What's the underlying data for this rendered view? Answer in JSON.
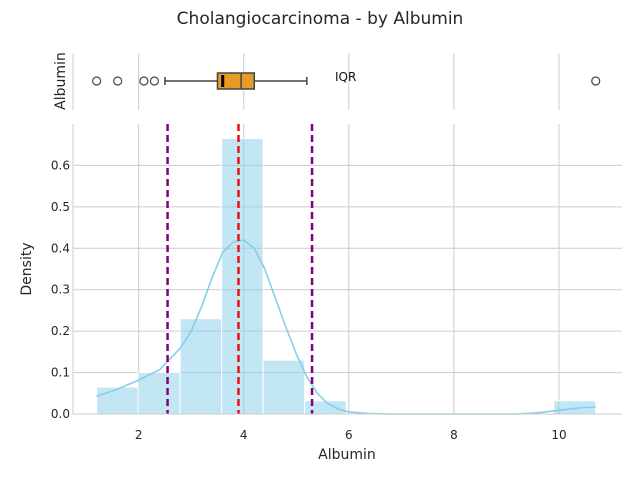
{
  "chart_data": {
    "type": "bar",
    "title": "Cholangiocarcinoma - by Albumin",
    "boxplot": {
      "ylabel": "Albumin",
      "q1": 3.5,
      "median": 3.95,
      "q3": 4.2,
      "whisker_low": 2.5,
      "whisker_high": 5.2,
      "mean": 3.6,
      "outliers": [
        1.2,
        1.6,
        2.1,
        2.3,
        10.7
      ],
      "annotation": "IQR",
      "box_color": "#e69c24"
    },
    "histogram": {
      "xlabel": "Albumin",
      "ylabel": "Density",
      "xlim": [
        0.75,
        11.2
      ],
      "ylim": [
        0,
        0.7
      ],
      "xticks": [
        2,
        4,
        6,
        8,
        10
      ],
      "yticks": [
        0.0,
        0.1,
        0.2,
        0.3,
        0.4,
        0.5,
        0.6
      ],
      "bins": [
        {
          "x0": 1.2,
          "x1": 1.99,
          "density": 0.065
        },
        {
          "x0": 1.99,
          "x1": 2.79,
          "density": 0.1
        },
        {
          "x0": 2.79,
          "x1": 3.58,
          "density": 0.23
        },
        {
          "x0": 3.58,
          "x1": 4.37,
          "density": 0.665
        },
        {
          "x0": 4.37,
          "x1": 5.16,
          "density": 0.13
        },
        {
          "x0": 5.16,
          "x1": 5.95,
          "density": 0.032
        },
        {
          "x0": 5.95,
          "x1": 6.74,
          "density": 0
        },
        {
          "x0": 6.74,
          "x1": 7.53,
          "density": 0
        },
        {
          "x0": 7.53,
          "x1": 8.32,
          "density": 0
        },
        {
          "x0": 8.32,
          "x1": 9.11,
          "density": 0
        },
        {
          "x0": 9.11,
          "x1": 9.9,
          "density": 0
        },
        {
          "x0": 9.9,
          "x1": 10.7,
          "density": 0.032
        }
      ],
      "kde": {
        "x": [
          1.2,
          1.6,
          2.0,
          2.4,
          2.8,
          3.0,
          3.2,
          3.4,
          3.6,
          3.8,
          4.0,
          4.2,
          4.4,
          4.6,
          4.8,
          5.0,
          5.2,
          5.4,
          5.6,
          5.8,
          6.0,
          6.4,
          6.8,
          7.2,
          7.6,
          8.0,
          8.4,
          8.8,
          9.2,
          9.6,
          10.0,
          10.4,
          10.7
        ],
        "y": [
          0.043,
          0.06,
          0.082,
          0.107,
          0.16,
          0.2,
          0.26,
          0.33,
          0.39,
          0.415,
          0.42,
          0.4,
          0.35,
          0.28,
          0.21,
          0.145,
          0.09,
          0.05,
          0.025,
          0.012,
          0.005,
          0.001,
          0.0,
          0.0,
          0.0,
          0.0,
          0.0,
          0.0,
          0.0,
          0.003,
          0.009,
          0.015,
          0.017
        ]
      },
      "lines": [
        {
          "x": 2.55,
          "color": "#800080"
        },
        {
          "x": 3.9,
          "color": "#ee1111"
        },
        {
          "x": 5.3,
          "color": "#800080"
        }
      ],
      "bar_color": "#87ceeb",
      "kde_color": "#87ceeb",
      "grid": true
    }
  }
}
